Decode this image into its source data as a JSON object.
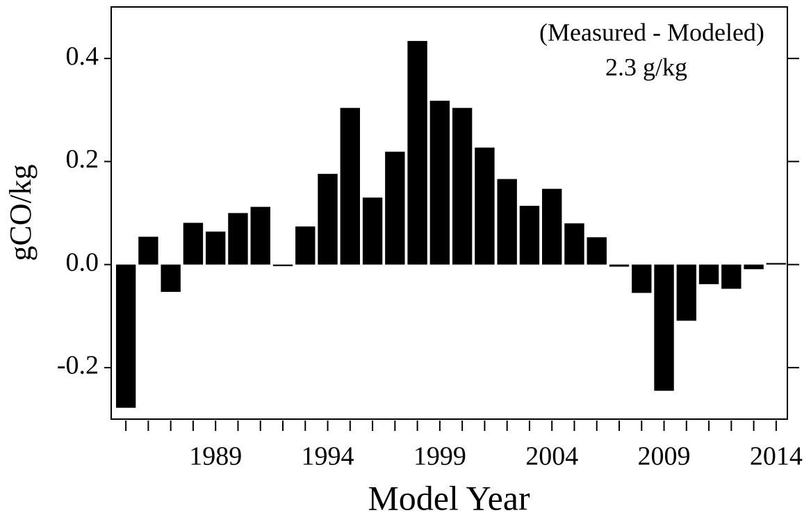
{
  "chart_data": {
    "type": "bar",
    "annotations": [
      "(Measured - Modeled)",
      "2.3 g/kg"
    ],
    "xlabel": "Model Year",
    "ylabel": "gCO/kg",
    "categories": [
      null,
      null,
      null,
      null,
      "1989",
      null,
      null,
      null,
      null,
      "1994",
      null,
      null,
      null,
      null,
      "1999",
      null,
      null,
      null,
      null,
      "2004",
      null,
      null,
      null,
      null,
      "2009",
      null,
      null,
      null,
      null,
      "2014"
    ],
    "values": [
      -0.278,
      0.054,
      -0.053,
      0.081,
      0.064,
      0.1,
      0.112,
      -0.003,
      0.074,
      0.176,
      0.304,
      0.13,
      0.219,
      0.434,
      0.318,
      0.304,
      0.227,
      0.166,
      0.114,
      0.147,
      0.08,
      0.053,
      -0.004,
      -0.055,
      -0.245,
      -0.109,
      -0.038,
      -0.047,
      -0.009,
      0.003
    ],
    "color": "#000000",
    "ylim": [
      -0.3,
      0.5
    ],
    "yticks": [
      -0.2,
      {
        "value": 0,
        "label": "0.0"
      },
      0.2,
      0.4
    ]
  }
}
